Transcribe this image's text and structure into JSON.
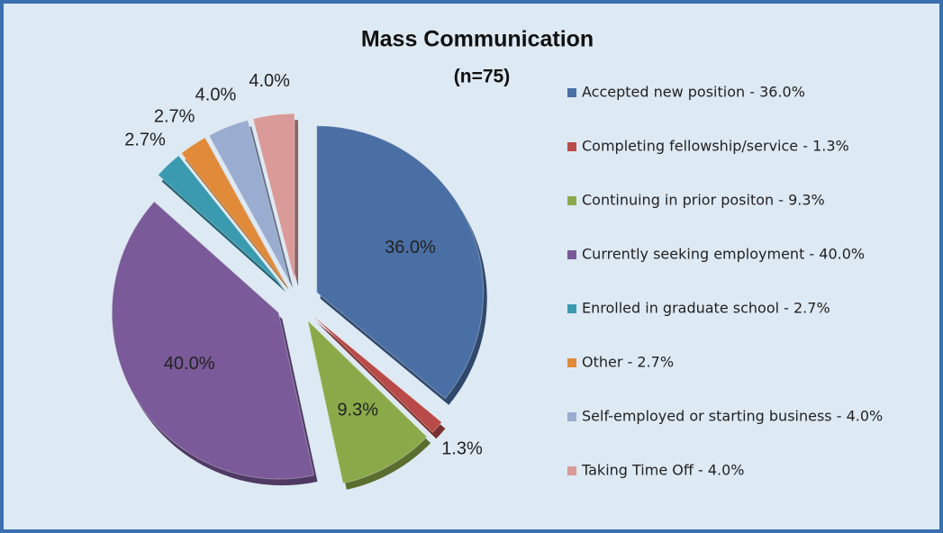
{
  "chart_data": {
    "type": "pie",
    "title": "Mass Communication",
    "subtitle": "(n=75)",
    "categories": [
      "Accepted new position - 36.0%",
      "Completing fellowship/service - 1.3%",
      "Continuing in prior positon - 9.3%",
      "Currently seeking employment - 40.0%",
      "Enrolled in graduate school - 2.7%",
      "Other - 2.7%",
      "Self-employed or starting business - 4.0%",
      "Taking Time Off - 4.0%"
    ],
    "values": [
      36.0,
      1.3,
      9.3,
      40.0,
      2.7,
      2.7,
      4.0,
      4.0
    ],
    "value_labels": [
      "36.0%",
      "1.3%",
      "9.3%",
      "40.0%",
      "2.7%",
      "2.7%",
      "4.0%",
      "4.0%"
    ],
    "colors": [
      "#4a6fa5",
      "#b84a48",
      "#8aaa4a",
      "#7a5a98",
      "#3a9ab0",
      "#e08a3a",
      "#9aaccf",
      "#d99a98"
    ],
    "legend": "right"
  }
}
